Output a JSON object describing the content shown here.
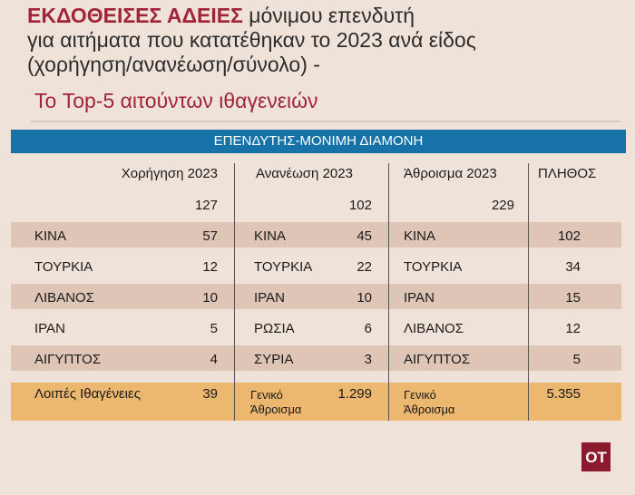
{
  "title": {
    "line1_highlight": "ΕΚΔΟΘΕΙΣΕΣ ΑΔΕΙΕΣ",
    "line1_rest": " μόνιμου επενδυτή",
    "line2": "για αιτήματα που κατατέθηκαν το 2023 ανά είδος",
    "line3": "(χορήγηση/ανανέωση/σύνολο) -",
    "subtitle": "Το Top-5 αιτούντων ιθαγενειών"
  },
  "table": {
    "banner": "ΕΠΕΝΔΥΤΗΣ-ΜΟΝΙΜΗ ΔΙΑΜΟΝΗ",
    "headers": [
      "Χορήγηση 2023",
      "Ανανέωση 2023",
      "Άθροισμα 2023",
      "ΠΛΗΘΟΣ"
    ],
    "totals": [
      "127",
      "102",
      "229"
    ],
    "rows": [
      {
        "c1": "ΚΙΝΑ",
        "v1": "57",
        "c2": "ΚΙΝΑ",
        "v2": "45",
        "c3": "ΚΙΝΑ",
        "v3": "102"
      },
      {
        "c1": "ΤΟΥΡΚΙΑ",
        "v1": "12",
        "c2": "ΤΟΥΡΚΙΑ",
        "v2": "22",
        "c3": "ΤΟΥΡΚΙΑ",
        "v3": "34"
      },
      {
        "c1": "ΛΙΒΑΝΟΣ",
        "v1": "10",
        "c2": "ΙΡΑΝ",
        "v2": "10",
        "c3": "ΙΡΑΝ",
        "v3": "15"
      },
      {
        "c1": "ΙΡΑΝ",
        "v1": "5",
        "c2": "ΡΩΣΙΑ",
        "v2": "6",
        "c3": "ΛΙΒΑΝΟΣ",
        "v3": "12"
      },
      {
        "c1": "ΑΙΓΥΠΤΟΣ",
        "v1": "4",
        "c2": "ΣΥΡΙΑ",
        "v2": "3",
        "c3": "ΑΙΓΥΠΤΟΣ",
        "v3": "5"
      }
    ],
    "last": {
      "c1": "Λοιπές Ιθαγένειες",
      "v1": "39",
      "c2a": "Γενικό",
      "c2b": "Άθροισμα",
      "v2": "1.299",
      "c3a": "Γενικό",
      "c3b": "Άθροισμα",
      "v3": "5.355"
    }
  },
  "logo": "OT"
}
